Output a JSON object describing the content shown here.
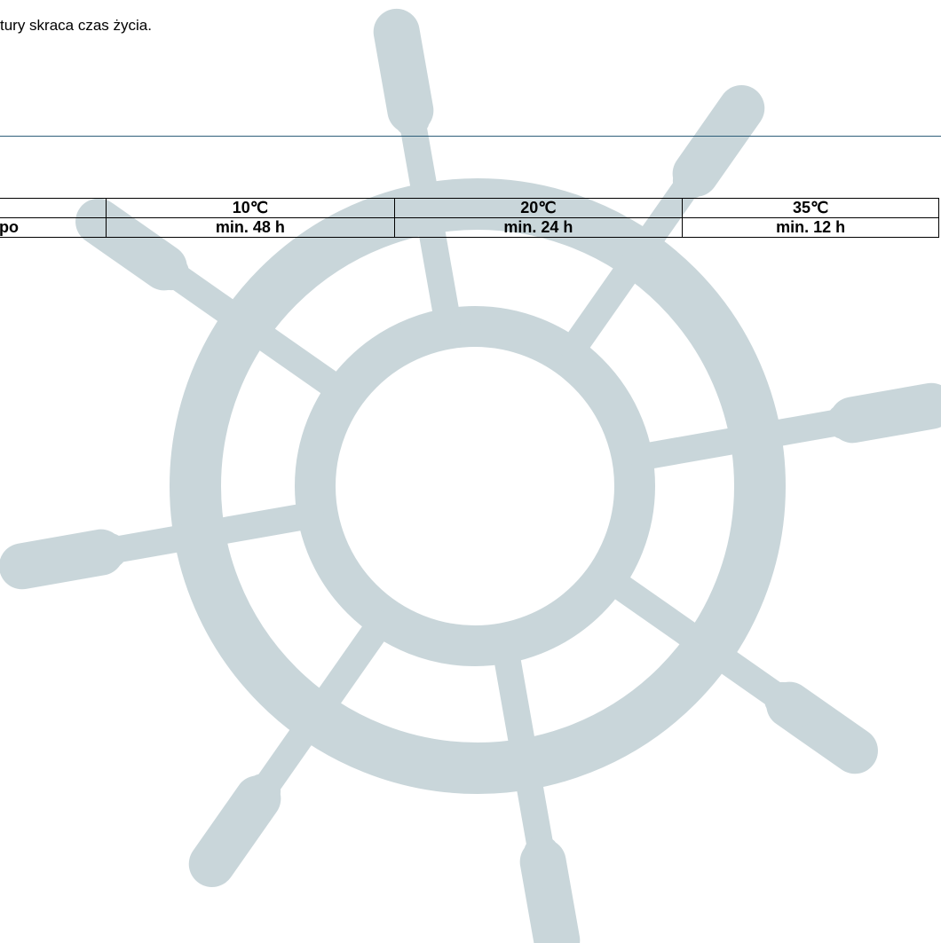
{
  "paragraph": "tury skraca czas życia.",
  "table": {
    "header": [
      "10℃",
      "20℃",
      "35℃"
    ],
    "rows": [
      [
        "po",
        "min. 48 h",
        "min. 24 h",
        "min. 12 h"
      ]
    ]
  }
}
